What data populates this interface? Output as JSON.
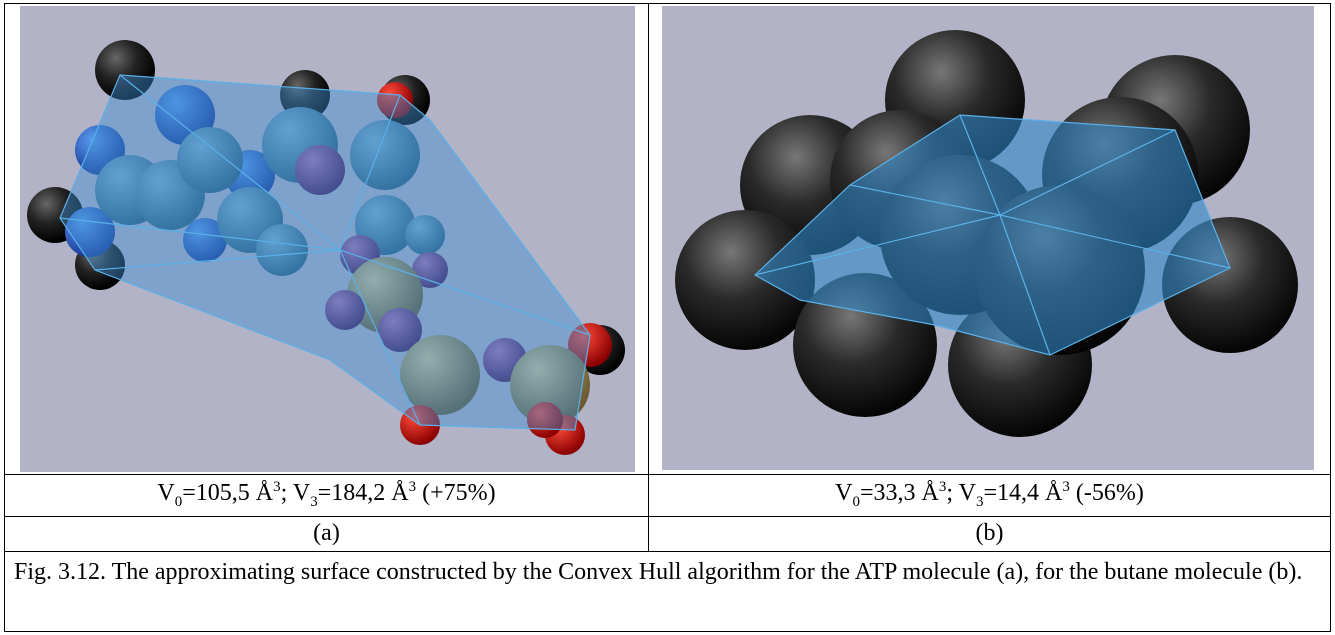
{
  "panels": [
    {
      "caption_parts": [
        "V",
        "0",
        "=105,5 Å",
        "3",
        "; V",
        "3",
        "=184,2 Å",
        "3",
        " (+75%)"
      ],
      "label": "(a)"
    },
    {
      "caption_parts": [
        "V",
        "0",
        "=33,3 Å",
        "3",
        "; V",
        "3",
        "=14,4 Å",
        "3",
        " (-56%)"
      ],
      "label": "(b)"
    }
  ],
  "figure_caption": "Fig. 3.12. The approximating surface constructed by the Convex Hull algorithm for the ATP molecule (a), for the butane molecule (b)."
}
